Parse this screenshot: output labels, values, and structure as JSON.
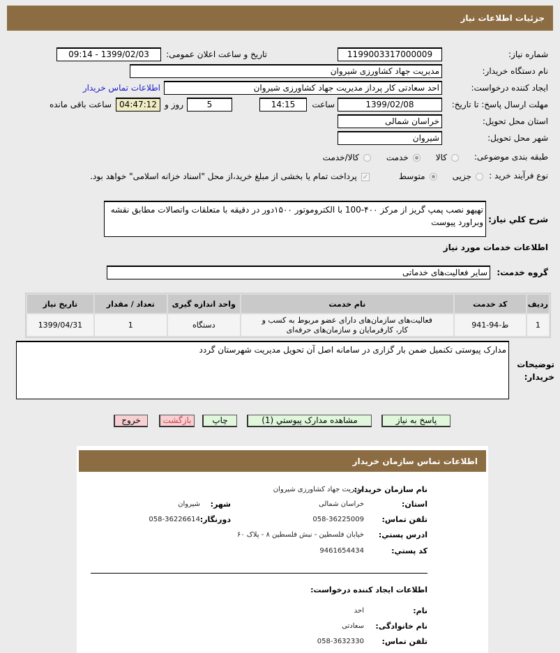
{
  "header": {
    "title": "جزئیات اطلاعات نیاز"
  },
  "form": {
    "need_number_label": "شماره نیاز:",
    "need_number": "1199003317000009",
    "announce_label": "تاریخ و ساعت اعلان عمومی:",
    "announce_value": "1399/02/03 - 09:14",
    "buyer_org_label": "نام دستگاه خریدار:",
    "buyer_org": "مدیریت جهاد کشاورزی شیروان",
    "creator_label": "ایجاد کننده درخواست:",
    "creator": "احد سعادتی کار پرداز مدیریت جهاد کشاورزی شیروان",
    "contact_link": "اطلاعات تماس خریدار",
    "deadline_label": "مهلت ارسال پاسخ: تا تاریخ:",
    "deadline_date": "1399/02/08",
    "time_label": "ساعت",
    "deadline_time": "14:15",
    "days": "5",
    "days_label": "روز و",
    "remaining": "04:47:12",
    "remaining_label": "ساعت باقی مانده",
    "province_label": "استان محل تحویل:",
    "province": "خراسان شمالی",
    "city_label": "شهر محل تحویل:",
    "city": "شیروان",
    "category_label": "طبقه بندی موضوعی:",
    "category_options": [
      "کالا",
      "خدمت",
      "کالا/خدمت"
    ],
    "category_selected": "خدمت",
    "process_label": "نوع فرآیند خرید :",
    "process_options": [
      "جزیی",
      "متوسط"
    ],
    "process_selected": "متوسط",
    "payment_note": "پرداخت تمام یا بخشی از مبلغ خرید،از محل \"اسناد خزانه اسلامی\" خواهد بود.",
    "desc_label": "شرح كلي نياز:",
    "desc": "تهیهو نصب پمپ گریز از مرکز ۴۰۰-100 با الکتروموتور ۱۵۰۰دور در دقیقه با متعلقات واتصالات مطابق نقشه وبراورد پیوست",
    "services_title": "اطلاعات خدمات مورد نیاز",
    "service_group_label": "گروه خدمت:",
    "service_group": "سایر فعالیت‌های خدماتی",
    "notes_label": "توضیحات خریدار:",
    "notes": "مدارک پیوستی تکنمیل ضمن بار گزاری در سامانه اصل آن تحویل مدیریت شهرستان گردد"
  },
  "table": {
    "headers": [
      "ردیف",
      "کد خدمت",
      "نام خدمت",
      "واحد اندازه گیری",
      "تعداد / مقدار",
      "تاریخ نیاز"
    ],
    "rows": [
      [
        "1",
        "ط-94-941",
        "فعالیت‌های سازمان‌های دارای عضو مربوط به کسب و کار، کارفرمایان و سازمان‌های حرفه‌ای",
        "دستگاه",
        "1",
        "1399/04/31"
      ]
    ]
  },
  "buttons": {
    "reply": "پاسخ به نیاز",
    "attachments": "مشاهده مدارک پیوستي (1)",
    "print": "چاپ",
    "back": "بازگشت",
    "exit": "خروج"
  },
  "contact": {
    "title": "اطلاعات تماس سازمان خریدار",
    "org_label": "نام سازمان خریدار:",
    "org": "مدیریت جهاد کشاورزی شیروان",
    "province_label": "استان:",
    "province": "خراسان شمالی",
    "city_label": "شهر:",
    "city": "شیروان",
    "phone_label": "تلفن تماس:",
    "phone": "058-36225009",
    "fax_label": "دورنگار:",
    "fax": "058-36226614",
    "address_label": "ادرس پستي:",
    "address": "خیابان فلسطین - نبش فلسطین ۸ - پلاک ۶۰",
    "postal_label": "کد پستي:",
    "postal": "9461654434",
    "creator_title": "اطلاعات ایجاد کننده درخواست:",
    "name_label": "نام:",
    "name": "احد",
    "family_label": "نام خانوادگی:",
    "family": "سعادتی",
    "cphone_label": "تلفن تماس:",
    "cphone": "058-3632330"
  }
}
